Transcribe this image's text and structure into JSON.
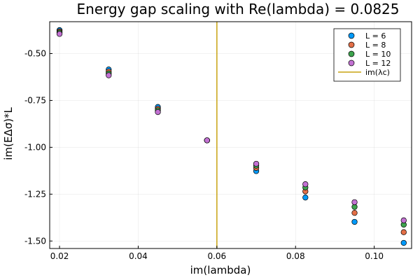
{
  "chart_data": {
    "type": "scatter",
    "title": "Energy gap scaling with Re(lambda) = 0.0825",
    "xlabel": "im(lambda)",
    "ylabel": "im(EΔσ)*L",
    "xlim": [
      0.0175,
      0.1095
    ],
    "ylim": [
      -1.54,
      -0.33
    ],
    "x_ticks": [
      0.02,
      0.04,
      0.06,
      0.08,
      0.1
    ],
    "x_tick_labels": [
      "0.02",
      "0.04",
      "0.06",
      "0.08",
      "0.10"
    ],
    "y_ticks": [
      -0.5,
      -0.75,
      -1.0,
      -1.25,
      -1.5
    ],
    "y_tick_labels": [
      "-0.50",
      "-0.75",
      "-1.00",
      "-1.25",
      "-1.50"
    ],
    "grid": true,
    "legend_position": "top-right",
    "x": [
      0.02,
      0.0325,
      0.045,
      0.0575,
      0.07,
      0.0825,
      0.095,
      0.1075
    ],
    "series": [
      {
        "name": "L = 6",
        "color": "#009AFA",
        "values": [
          -0.375,
          -0.585,
          -0.785,
          -0.963,
          -1.127,
          -1.268,
          -1.398,
          -1.51
        ]
      },
      {
        "name": "L = 8",
        "color": "#E36F47",
        "values": [
          -0.382,
          -0.596,
          -0.795,
          -0.963,
          -1.11,
          -1.235,
          -1.35,
          -1.453
        ]
      },
      {
        "name": "L = 10",
        "color": "#3EA44E",
        "values": [
          -0.388,
          -0.606,
          -0.803,
          -0.963,
          -1.098,
          -1.214,
          -1.318,
          -1.413
        ]
      },
      {
        "name": "L = 12",
        "color": "#C271D2",
        "values": [
          -0.395,
          -0.616,
          -0.812,
          -0.963,
          -1.088,
          -1.197,
          -1.293,
          -1.39
        ]
      }
    ],
    "vline": {
      "name": "im(λc)",
      "x": 0.06,
      "color": "#C8A311"
    }
  }
}
